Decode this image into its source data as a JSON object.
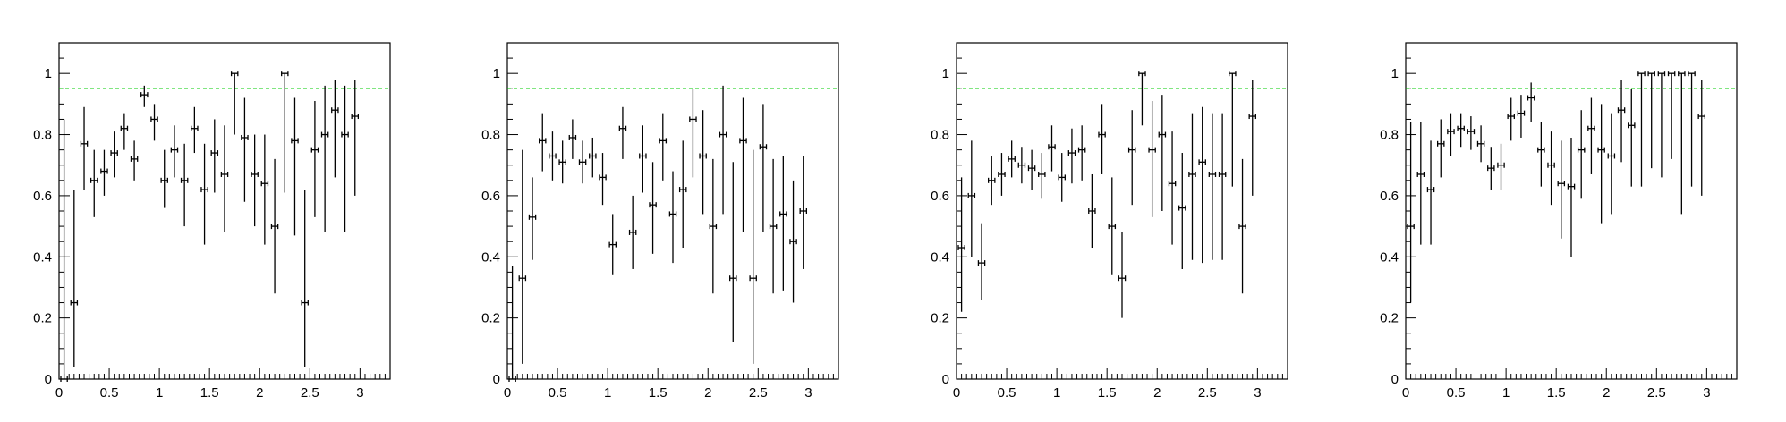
{
  "chart_data": [
    {
      "type": "scatter",
      "title": "",
      "xlabel": "",
      "ylabel": "",
      "xlim": [
        0,
        3.3
      ],
      "ylim": [
        0,
        1.1
      ],
      "xticks": [
        "0",
        "0.5",
        "1",
        "1.5",
        "2",
        "2.5",
        "3"
      ],
      "yticks": [
        "0",
        "0.2",
        "0.4",
        "0.6",
        "0.8",
        "1"
      ],
      "reference_line": {
        "y": 0.95,
        "color": "#00cc00",
        "style": "dashed"
      },
      "x_bin_halfwidth": 0.05,
      "points": [
        {
          "x": 0.05,
          "y": 0.0,
          "elo": 0.0,
          "ehi": 0.85
        },
        {
          "x": 0.15,
          "y": 0.25,
          "elo": 0.21,
          "ehi": 0.37
        },
        {
          "x": 0.25,
          "y": 0.77,
          "elo": 0.15,
          "ehi": 0.12
        },
        {
          "x": 0.35,
          "y": 0.65,
          "elo": 0.12,
          "ehi": 0.1
        },
        {
          "x": 0.45,
          "y": 0.68,
          "elo": 0.08,
          "ehi": 0.07
        },
        {
          "x": 0.55,
          "y": 0.74,
          "elo": 0.08,
          "ehi": 0.07
        },
        {
          "x": 0.65,
          "y": 0.82,
          "elo": 0.07,
          "ehi": 0.05
        },
        {
          "x": 0.75,
          "y": 0.72,
          "elo": 0.07,
          "ehi": 0.06
        },
        {
          "x": 0.85,
          "y": 0.93,
          "elo": 0.04,
          "ehi": 0.03
        },
        {
          "x": 0.95,
          "y": 0.85,
          "elo": 0.07,
          "ehi": 0.05
        },
        {
          "x": 1.05,
          "y": 0.65,
          "elo": 0.09,
          "ehi": 0.1
        },
        {
          "x": 1.15,
          "y": 0.75,
          "elo": 0.09,
          "ehi": 0.08
        },
        {
          "x": 1.25,
          "y": 0.65,
          "elo": 0.15,
          "ehi": 0.12
        },
        {
          "x": 1.35,
          "y": 0.82,
          "elo": 0.08,
          "ehi": 0.07
        },
        {
          "x": 1.45,
          "y": 0.62,
          "elo": 0.18,
          "ehi": 0.15
        },
        {
          "x": 1.55,
          "y": 0.74,
          "elo": 0.13,
          "ehi": 0.11
        },
        {
          "x": 1.65,
          "y": 0.67,
          "elo": 0.19,
          "ehi": 0.16
        },
        {
          "x": 1.75,
          "y": 1.0,
          "elo": 0.2,
          "ehi": 0.0
        },
        {
          "x": 1.85,
          "y": 0.79,
          "elo": 0.21,
          "ehi": 0.13
        },
        {
          "x": 1.95,
          "y": 0.67,
          "elo": 0.17,
          "ehi": 0.13
        },
        {
          "x": 2.05,
          "y": 0.64,
          "elo": 0.2,
          "ehi": 0.16
        },
        {
          "x": 2.15,
          "y": 0.5,
          "elo": 0.22,
          "ehi": 0.22
        },
        {
          "x": 2.25,
          "y": 1.0,
          "elo": 0.39,
          "ehi": 0.0
        },
        {
          "x": 2.35,
          "y": 0.78,
          "elo": 0.31,
          "ehi": 0.14
        },
        {
          "x": 2.45,
          "y": 0.25,
          "elo": 0.21,
          "ehi": 0.37
        },
        {
          "x": 2.55,
          "y": 0.75,
          "elo": 0.22,
          "ehi": 0.16
        },
        {
          "x": 2.65,
          "y": 0.8,
          "elo": 0.32,
          "ehi": 0.16
        },
        {
          "x": 2.75,
          "y": 0.88,
          "elo": 0.22,
          "ehi": 0.1
        },
        {
          "x": 2.85,
          "y": 0.8,
          "elo": 0.32,
          "ehi": 0.16
        },
        {
          "x": 2.95,
          "y": 0.86,
          "elo": 0.26,
          "ehi": 0.12
        }
      ]
    },
    {
      "type": "scatter",
      "title": "",
      "xlabel": "",
      "ylabel": "",
      "xlim": [
        0,
        3.3
      ],
      "ylim": [
        0,
        1.1
      ],
      "xticks": [
        "0",
        "0.5",
        "1",
        "1.5",
        "2",
        "2.5",
        "3"
      ],
      "yticks": [
        "0",
        "0.2",
        "0.4",
        "0.6",
        "0.8",
        "1"
      ],
      "reference_line": {
        "y": 0.95,
        "color": "#00cc00",
        "style": "dashed"
      },
      "x_bin_halfwidth": 0.05,
      "points": [
        {
          "x": 0.05,
          "y": 0.0,
          "elo": 0.0,
          "ehi": 0.37
        },
        {
          "x": 0.15,
          "y": 0.33,
          "elo": 0.28,
          "ehi": 0.42
        },
        {
          "x": 0.25,
          "y": 0.53,
          "elo": 0.14,
          "ehi": 0.13
        },
        {
          "x": 0.35,
          "y": 0.78,
          "elo": 0.1,
          "ehi": 0.09
        },
        {
          "x": 0.45,
          "y": 0.73,
          "elo": 0.08,
          "ehi": 0.08
        },
        {
          "x": 0.55,
          "y": 0.71,
          "elo": 0.07,
          "ehi": 0.07
        },
        {
          "x": 0.65,
          "y": 0.79,
          "elo": 0.07,
          "ehi": 0.06
        },
        {
          "x": 0.75,
          "y": 0.71,
          "elo": 0.07,
          "ehi": 0.07
        },
        {
          "x": 0.85,
          "y": 0.73,
          "elo": 0.07,
          "ehi": 0.06
        },
        {
          "x": 0.95,
          "y": 0.66,
          "elo": 0.09,
          "ehi": 0.08
        },
        {
          "x": 1.05,
          "y": 0.44,
          "elo": 0.1,
          "ehi": 0.1
        },
        {
          "x": 1.15,
          "y": 0.82,
          "elo": 0.1,
          "ehi": 0.07
        },
        {
          "x": 1.25,
          "y": 0.48,
          "elo": 0.12,
          "ehi": 0.12
        },
        {
          "x": 1.35,
          "y": 0.73,
          "elo": 0.12,
          "ehi": 0.1
        },
        {
          "x": 1.45,
          "y": 0.57,
          "elo": 0.16,
          "ehi": 0.14
        },
        {
          "x": 1.55,
          "y": 0.78,
          "elo": 0.13,
          "ehi": 0.09
        },
        {
          "x": 1.65,
          "y": 0.54,
          "elo": 0.16,
          "ehi": 0.14
        },
        {
          "x": 1.75,
          "y": 0.62,
          "elo": 0.19,
          "ehi": 0.16
        },
        {
          "x": 1.85,
          "y": 0.85,
          "elo": 0.19,
          "ehi": 0.1
        },
        {
          "x": 1.95,
          "y": 0.73,
          "elo": 0.19,
          "ehi": 0.15
        },
        {
          "x": 2.05,
          "y": 0.5,
          "elo": 0.22,
          "ehi": 0.22
        },
        {
          "x": 2.15,
          "y": 0.8,
          "elo": 0.26,
          "ehi": 0.16
        },
        {
          "x": 2.25,
          "y": 0.33,
          "elo": 0.21,
          "ehi": 0.38
        },
        {
          "x": 2.35,
          "y": 0.78,
          "elo": 0.3,
          "ehi": 0.14
        },
        {
          "x": 2.45,
          "y": 0.33,
          "elo": 0.28,
          "ehi": 0.42
        },
        {
          "x": 2.55,
          "y": 0.76,
          "elo": 0.28,
          "ehi": 0.14
        },
        {
          "x": 2.65,
          "y": 0.5,
          "elo": 0.22,
          "ehi": 0.22
        },
        {
          "x": 2.75,
          "y": 0.54,
          "elo": 0.25,
          "ehi": 0.19
        },
        {
          "x": 2.85,
          "y": 0.45,
          "elo": 0.2,
          "ehi": 0.2
        },
        {
          "x": 2.95,
          "y": 0.55,
          "elo": 0.19,
          "ehi": 0.18
        }
      ]
    },
    {
      "type": "scatter",
      "title": "",
      "xlabel": "",
      "ylabel": "",
      "xlim": [
        0,
        3.3
      ],
      "ylim": [
        0,
        1.1
      ],
      "xticks": [
        "0",
        "0.5",
        "1",
        "1.5",
        "2",
        "2.5",
        "3"
      ],
      "yticks": [
        "0",
        "0.2",
        "0.4",
        "0.6",
        "0.8",
        "1"
      ],
      "reference_line": {
        "y": 0.95,
        "color": "#00cc00",
        "style": "dashed"
      },
      "x_bin_halfwidth": 0.05,
      "points": [
        {
          "x": 0.05,
          "y": 0.43,
          "elo": 0.21,
          "ehi": 0.23
        },
        {
          "x": 0.15,
          "y": 0.6,
          "elo": 0.2,
          "ehi": 0.18
        },
        {
          "x": 0.25,
          "y": 0.38,
          "elo": 0.12,
          "ehi": 0.13
        },
        {
          "x": 0.35,
          "y": 0.65,
          "elo": 0.08,
          "ehi": 0.08
        },
        {
          "x": 0.45,
          "y": 0.67,
          "elo": 0.07,
          "ehi": 0.07
        },
        {
          "x": 0.55,
          "y": 0.72,
          "elo": 0.06,
          "ehi": 0.06
        },
        {
          "x": 0.65,
          "y": 0.7,
          "elo": 0.06,
          "ehi": 0.06
        },
        {
          "x": 0.75,
          "y": 0.69,
          "elo": 0.07,
          "ehi": 0.06
        },
        {
          "x": 0.85,
          "y": 0.67,
          "elo": 0.08,
          "ehi": 0.07
        },
        {
          "x": 0.95,
          "y": 0.76,
          "elo": 0.08,
          "ehi": 0.07
        },
        {
          "x": 1.05,
          "y": 0.66,
          "elo": 0.08,
          "ehi": 0.08
        },
        {
          "x": 1.15,
          "y": 0.74,
          "elo": 0.1,
          "ehi": 0.08
        },
        {
          "x": 1.25,
          "y": 0.75,
          "elo": 0.1,
          "ehi": 0.08
        },
        {
          "x": 1.35,
          "y": 0.55,
          "elo": 0.12,
          "ehi": 0.12
        },
        {
          "x": 1.45,
          "y": 0.8,
          "elo": 0.13,
          "ehi": 0.1
        },
        {
          "x": 1.55,
          "y": 0.5,
          "elo": 0.16,
          "ehi": 0.16
        },
        {
          "x": 1.65,
          "y": 0.33,
          "elo": 0.13,
          "ehi": 0.15
        },
        {
          "x": 1.75,
          "y": 0.75,
          "elo": 0.18,
          "ehi": 0.13
        },
        {
          "x": 1.85,
          "y": 1.0,
          "elo": 0.17,
          "ehi": 0.0
        },
        {
          "x": 1.95,
          "y": 0.75,
          "elo": 0.22,
          "ehi": 0.16
        },
        {
          "x": 2.05,
          "y": 0.8,
          "elo": 0.25,
          "ehi": 0.13
        },
        {
          "x": 2.15,
          "y": 0.64,
          "elo": 0.2,
          "ehi": 0.17
        },
        {
          "x": 2.25,
          "y": 0.56,
          "elo": 0.2,
          "ehi": 0.18
        },
        {
          "x": 2.35,
          "y": 0.67,
          "elo": 0.28,
          "ehi": 0.2
        },
        {
          "x": 2.45,
          "y": 0.71,
          "elo": 0.33,
          "ehi": 0.18
        },
        {
          "x": 2.55,
          "y": 0.67,
          "elo": 0.28,
          "ehi": 0.2
        },
        {
          "x": 2.65,
          "y": 0.67,
          "elo": 0.28,
          "ehi": 0.2
        },
        {
          "x": 2.75,
          "y": 1.0,
          "elo": 0.37,
          "ehi": 0.0
        },
        {
          "x": 2.85,
          "y": 0.5,
          "elo": 0.22,
          "ehi": 0.22
        },
        {
          "x": 2.95,
          "y": 0.86,
          "elo": 0.26,
          "ehi": 0.12
        }
      ]
    },
    {
      "type": "scatter",
      "title": "",
      "xlabel": "",
      "ylabel": "",
      "xlim": [
        0,
        3.3
      ],
      "ylim": [
        0,
        1.1
      ],
      "xticks": [
        "0",
        "0.5",
        "1",
        "1.5",
        "2",
        "2.5",
        "3"
      ],
      "yticks": [
        "0",
        "0.2",
        "0.4",
        "0.6",
        "0.8",
        "1"
      ],
      "reference_line": {
        "y": 0.95,
        "color": "#00cc00",
        "style": "dashed"
      },
      "x_bin_halfwidth": 0.05,
      "points": [
        {
          "x": 0.05,
          "y": 0.5,
          "elo": 0.25,
          "ehi": 0.34
        },
        {
          "x": 0.15,
          "y": 0.67,
          "elo": 0.23,
          "ehi": 0.17
        },
        {
          "x": 0.25,
          "y": 0.62,
          "elo": 0.18,
          "ehi": 0.16
        },
        {
          "x": 0.35,
          "y": 0.77,
          "elo": 0.11,
          "ehi": 0.08
        },
        {
          "x": 0.45,
          "y": 0.81,
          "elo": 0.08,
          "ehi": 0.06
        },
        {
          "x": 0.55,
          "y": 0.82,
          "elo": 0.06,
          "ehi": 0.05
        },
        {
          "x": 0.65,
          "y": 0.81,
          "elo": 0.06,
          "ehi": 0.05
        },
        {
          "x": 0.75,
          "y": 0.77,
          "elo": 0.06,
          "ehi": 0.06
        },
        {
          "x": 0.85,
          "y": 0.69,
          "elo": 0.07,
          "ehi": 0.07
        },
        {
          "x": 0.95,
          "y": 0.7,
          "elo": 0.08,
          "ehi": 0.07
        },
        {
          "x": 1.05,
          "y": 0.86,
          "elo": 0.08,
          "ehi": 0.06
        },
        {
          "x": 1.15,
          "y": 0.87,
          "elo": 0.08,
          "ehi": 0.06
        },
        {
          "x": 1.25,
          "y": 0.92,
          "elo": 0.08,
          "ehi": 0.05
        },
        {
          "x": 1.35,
          "y": 0.75,
          "elo": 0.12,
          "ehi": 0.09
        },
        {
          "x": 1.45,
          "y": 0.7,
          "elo": 0.13,
          "ehi": 0.11
        },
        {
          "x": 1.55,
          "y": 0.64,
          "elo": 0.18,
          "ehi": 0.14
        },
        {
          "x": 1.65,
          "y": 0.63,
          "elo": 0.23,
          "ehi": 0.16
        },
        {
          "x": 1.75,
          "y": 0.75,
          "elo": 0.16,
          "ehi": 0.13
        },
        {
          "x": 1.85,
          "y": 0.82,
          "elo": 0.15,
          "ehi": 0.1
        },
        {
          "x": 1.95,
          "y": 0.75,
          "elo": 0.24,
          "ehi": 0.15
        },
        {
          "x": 2.05,
          "y": 0.73,
          "elo": 0.19,
          "ehi": 0.14
        },
        {
          "x": 2.15,
          "y": 0.88,
          "elo": 0.17,
          "ehi": 0.1
        },
        {
          "x": 2.25,
          "y": 0.83,
          "elo": 0.2,
          "ehi": 0.12
        },
        {
          "x": 2.35,
          "y": 1.0,
          "elo": 0.37,
          "ehi": 0.0
        },
        {
          "x": 2.45,
          "y": 1.0,
          "elo": 0.31,
          "ehi": 0.0
        },
        {
          "x": 2.55,
          "y": 1.0,
          "elo": 0.34,
          "ehi": 0.0
        },
        {
          "x": 2.65,
          "y": 1.0,
          "elo": 0.28,
          "ehi": 0.0
        },
        {
          "x": 2.75,
          "y": 1.0,
          "elo": 0.46,
          "ehi": 0.0
        },
        {
          "x": 2.85,
          "y": 1.0,
          "elo": 0.37,
          "ehi": 0.0
        },
        {
          "x": 2.95,
          "y": 0.86,
          "elo": 0.26,
          "ehi": 0.12
        }
      ]
    }
  ],
  "colors": {
    "axis": "#000000",
    "markers": "#000000",
    "reference_line": "#00cc00",
    "background": "#ffffff"
  }
}
